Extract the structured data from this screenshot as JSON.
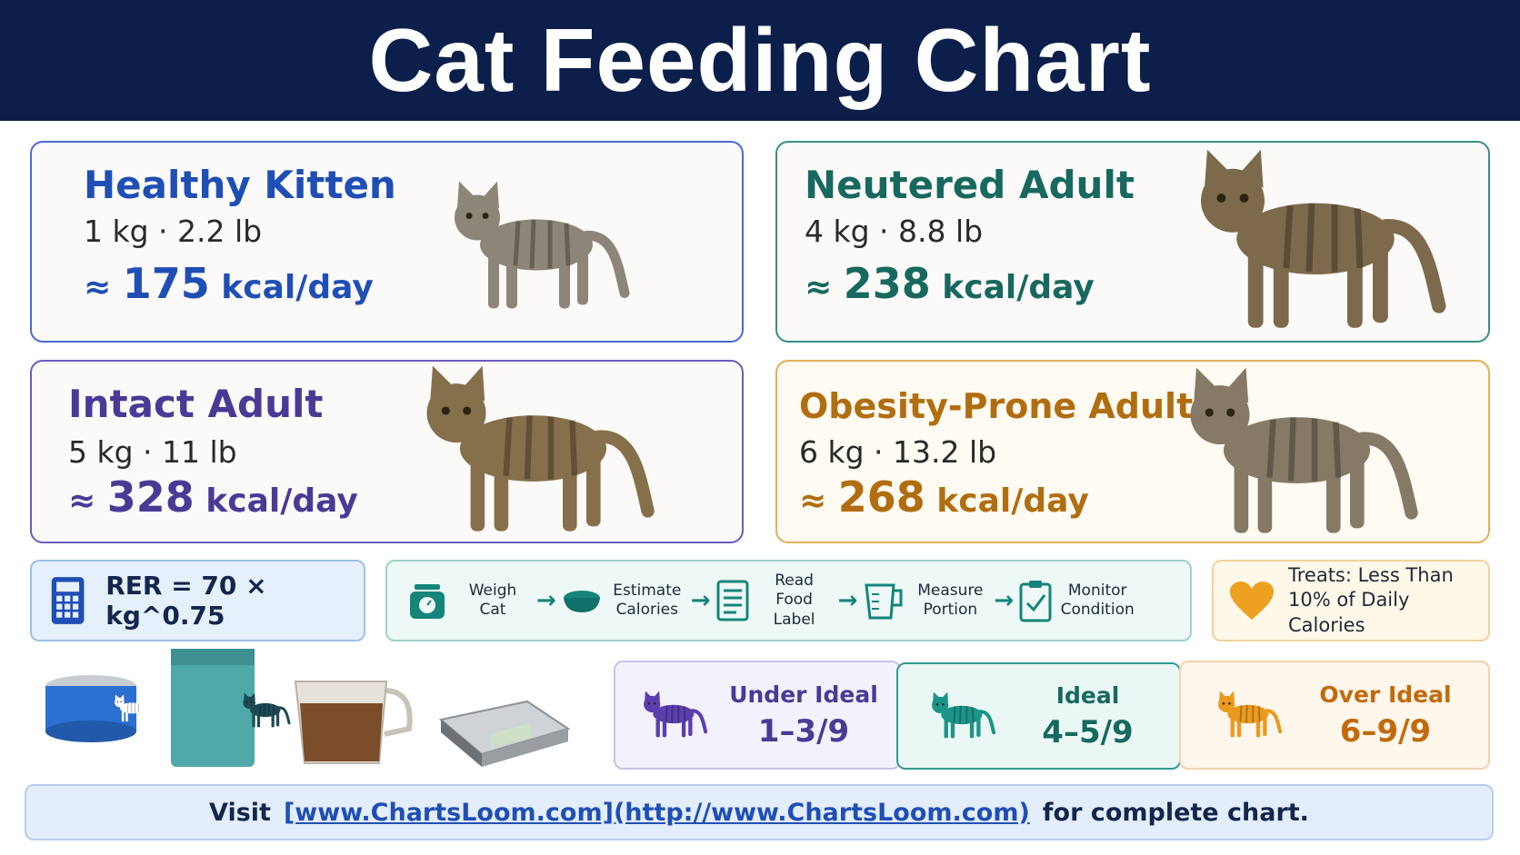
{
  "header": {
    "title": "Cat Feeding Chart"
  },
  "cards": [
    {
      "title": "Healthy Kitten",
      "weight": "1 kg · 2.2 lb",
      "approx": "≈",
      "kcal": 175,
      "unit": "kcal/day"
    },
    {
      "title": "Neutered Adult",
      "weight": "4 kg · 8.8 lb",
      "approx": "≈",
      "kcal": 238,
      "unit": "kcal/day"
    },
    {
      "title": "Intact Adult",
      "weight": "5 kg · 11 lb",
      "approx": "≈",
      "kcal": 328,
      "unit": "kcal/day"
    },
    {
      "title": "Obesity-Prone Adult",
      "weight": "6 kg · 13.2 lb",
      "approx": "≈",
      "kcal": 268,
      "unit": "kcal/day"
    }
  ],
  "formula": "RER = 70 × kg^0.75",
  "steps": [
    "Weigh Cat",
    "Estimate Calories",
    "Read Food Label",
    "Measure Portion",
    "Monitor Condition"
  ],
  "tip": "Treats: Less Than 10% of Daily Calories",
  "body_condition": [
    {
      "label": "Under Ideal",
      "range": "1–3/9"
    },
    {
      "label": "Ideal",
      "range": "4–5/9"
    },
    {
      "label": "Over Ideal",
      "range": "6–9/9"
    }
  ],
  "footer": {
    "prefix": "Visit",
    "link": "[www.ChartsLoom.com](http://www.ChartsLoom.com)",
    "suffix": "for complete chart."
  }
}
